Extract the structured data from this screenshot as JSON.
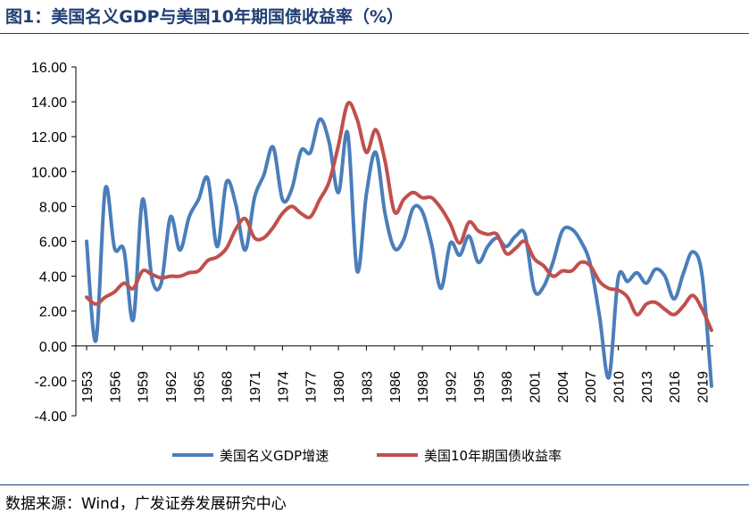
{
  "title": "图1：美国名义GDP与美国10年期国债收益率（%）",
  "source": "数据来源：Wind，广发证券发展研究中心",
  "chart_data": {
    "type": "line",
    "title": "图1：美国名义GDP与美国10年期国债收益率（%）",
    "xlabel": "",
    "ylabel": "",
    "ylim": [
      -4,
      16
    ],
    "yticks": [
      "16.00",
      "14.00",
      "12.00",
      "10.00",
      "8.00",
      "6.00",
      "4.00",
      "2.00",
      "0.00",
      "-2.00",
      "-4.00"
    ],
    "xticks": [
      "1953",
      "1956",
      "1959",
      "1962",
      "1965",
      "1968",
      "1971",
      "1974",
      "1977",
      "1980",
      "1983",
      "1986",
      "1989",
      "1992",
      "1995",
      "1998",
      "2001",
      "2004",
      "2007",
      "2010",
      "2013",
      "2016",
      "2019"
    ],
    "legend_position": "bottom",
    "grid": false,
    "x": [
      1953,
      1954,
      1955,
      1956,
      1957,
      1958,
      1959,
      1960,
      1961,
      1962,
      1963,
      1964,
      1965,
      1966,
      1967,
      1968,
      1969,
      1970,
      1971,
      1972,
      1973,
      1974,
      1975,
      1976,
      1977,
      1978,
      1979,
      1980,
      1981,
      1982,
      1983,
      1984,
      1985,
      1986,
      1987,
      1988,
      1989,
      1990,
      1991,
      1992,
      1993,
      1994,
      1995,
      1996,
      1997,
      1998,
      1999,
      2000,
      2001,
      2002,
      2003,
      2004,
      2005,
      2006,
      2007,
      2008,
      2009,
      2010,
      2011,
      2012,
      2013,
      2014,
      2015,
      2016,
      2017,
      2018,
      2019,
      2020
    ],
    "series": [
      {
        "name": "美国名义GDP增速",
        "color": "#4a7ebb",
        "values": [
          6.0,
          0.3,
          9.0,
          5.6,
          5.5,
          1.5,
          8.4,
          3.9,
          3.6,
          7.4,
          5.5,
          7.4,
          8.4,
          9.6,
          5.7,
          9.4,
          8.1,
          5.5,
          8.5,
          9.8,
          11.4,
          8.4,
          9.0,
          11.2,
          11.1,
          13.0,
          11.7,
          8.8,
          12.2,
          4.3,
          8.7,
          11.1,
          7.6,
          5.6,
          6.1,
          7.9,
          7.7,
          5.8,
          3.3,
          5.9,
          5.2,
          6.3,
          4.8,
          5.7,
          6.2,
          5.7,
          6.3,
          6.4,
          3.2,
          3.4,
          4.8,
          6.6,
          6.7,
          6.0,
          4.7,
          1.7,
          -1.8,
          3.9,
          3.7,
          4.2,
          3.6,
          4.4,
          4.0,
          2.7,
          4.2,
          5.4,
          4.0,
          -2.3
        ]
      },
      {
        "name": "美国10年期国债收益率",
        "color": "#c0504d",
        "values": [
          2.8,
          2.4,
          2.8,
          3.1,
          3.6,
          3.3,
          4.3,
          4.1,
          3.9,
          4.0,
          4.0,
          4.2,
          4.3,
          4.9,
          5.1,
          5.6,
          6.7,
          7.3,
          6.2,
          6.2,
          6.8,
          7.6,
          8.0,
          7.6,
          7.4,
          8.4,
          9.4,
          11.5,
          13.9,
          13.0,
          11.1,
          12.4,
          10.6,
          7.7,
          8.4,
          8.8,
          8.5,
          8.5,
          7.9,
          7.0,
          5.9,
          7.1,
          6.6,
          6.4,
          6.4,
          5.3,
          5.6,
          6.0,
          5.0,
          4.6,
          4.0,
          4.3,
          4.3,
          4.8,
          4.6,
          3.7,
          3.3,
          3.2,
          2.8,
          1.8,
          2.4,
          2.5,
          2.1,
          1.8,
          2.3,
          2.9,
          2.1,
          0.9
        ]
      }
    ]
  }
}
